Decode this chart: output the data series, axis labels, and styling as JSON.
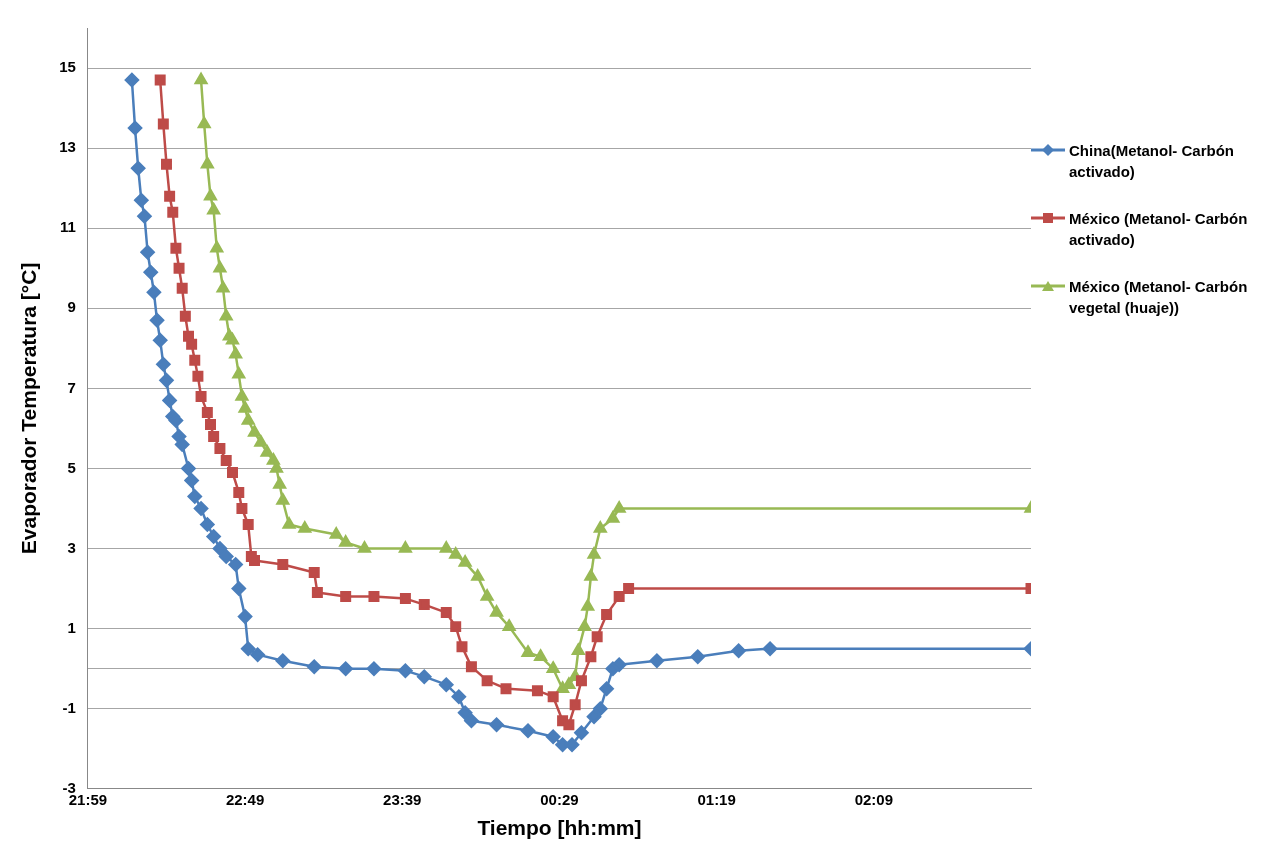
{
  "chart_data": {
    "type": "line",
    "xlabel": "Tiempo [hh:mm]",
    "ylabel": "Evaporador Temperatura [°C]",
    "xlim": [
      "--01-01T21:59",
      "--01-02T02:59"
    ],
    "xticks": [
      {
        "value": "--01-01T21:59",
        "label": "21:59"
      },
      {
        "value": "--01-01T22:49",
        "label": "22:49"
      },
      {
        "value": "--01-01T23:39",
        "label": "23:39"
      },
      {
        "value": "--01-02T00:29",
        "label": "00:29"
      },
      {
        "value": "--01-02T01:19",
        "label": "01:19"
      },
      {
        "value": "--01-02T02:09",
        "label": "02:09"
      }
    ],
    "ylim": [
      -3,
      16
    ],
    "yticks": [
      -3,
      -1,
      {
        "value": 0,
        "label": null
      },
      1,
      3,
      5,
      7,
      9,
      11,
      13,
      15
    ],
    "grid": "y",
    "legend": "right",
    "line_style": "solid",
    "series": [
      {
        "name": "China(Metanol- Carbón activado)",
        "color": "#4a7ebb",
        "marker": "diamond",
        "x": [
          "--01-01T22:13",
          "--01-01T22:14",
          "--01-01T22:15",
          "--01-01T22:16",
          "--01-01T22:17",
          "--01-01T22:18",
          "--01-01T22:19",
          "--01-01T22:20",
          "--01-01T22:21",
          "--01-01T22:22",
          "--01-01T22:23",
          "--01-01T22:24",
          "--01-01T22:25",
          "--01-01T22:26",
          "--01-01T22:27",
          "--01-01T22:28",
          "--01-01T22:29",
          "--01-01T22:31",
          "--01-01T22:32",
          "--01-01T22:33",
          "--01-01T22:35",
          "--01-01T22:37",
          "--01-01T22:39",
          "--01-01T22:41",
          "--01-01T22:43",
          "--01-01T22:46",
          "--01-01T22:47",
          "--01-01T22:49",
          "--01-01T22:50",
          "--01-01T22:53",
          "--01-01T23:01",
          "--01-01T23:11",
          "--01-01T23:21",
          "--01-01T23:30",
          "--01-01T23:40",
          "--01-01T23:46",
          "--01-01T23:53",
          "--01-01T23:57",
          "--01-01T23:59",
          "--01-02T00:01",
          "--01-02T00:09",
          "--01-02T00:19",
          "--01-02T00:27",
          "--01-02T00:30",
          "--01-02T00:33",
          "--01-02T00:36",
          "--01-02T00:40",
          "--01-02T00:42",
          "--01-02T00:44",
          "--01-02T00:46",
          "--01-02T00:48",
          "--01-02T01:00",
          "--01-02T01:13",
          "--01-02T01:26",
          "--01-02T01:36",
          "--01-02T02:59"
        ],
        "values": [
          14.7,
          13.5,
          12.5,
          11.7,
          11.3,
          10.4,
          9.9,
          9.4,
          8.7,
          8.2,
          7.6,
          7.2,
          6.7,
          6.3,
          6.2,
          5.8,
          5.6,
          5.0,
          4.7,
          4.3,
          4.0,
          3.6,
          3.3,
          3.0,
          2.8,
          2.6,
          2.0,
          1.3,
          0.5,
          0.35,
          0.2,
          0.05,
          0.0,
          0.0,
          -0.05,
          -0.2,
          -0.4,
          -0.7,
          -1.1,
          -1.3,
          -1.4,
          -1.55,
          -1.7,
          -1.9,
          -1.9,
          -1.6,
          -1.2,
          -1.0,
          -0.5,
          0.0,
          0.1,
          0.2,
          0.3,
          0.45,
          0.5,
          0.5
        ]
      },
      {
        "name": "México (Metanol- Carbón activado)",
        "color": "#be4b48",
        "marker": "square",
        "x": [
          "--01-01T22:22",
          "--01-01T22:23",
          "--01-01T22:24",
          "--01-01T22:25",
          "--01-01T22:26",
          "--01-01T22:27",
          "--01-01T22:28",
          "--01-01T22:29",
          "--01-01T22:30",
          "--01-01T22:31",
          "--01-01T22:32",
          "--01-01T22:33",
          "--01-01T22:34",
          "--01-01T22:35",
          "--01-01T22:37",
          "--01-01T22:38",
          "--01-01T22:39",
          "--01-01T22:41",
          "--01-01T22:43",
          "--01-01T22:45",
          "--01-01T22:47",
          "--01-01T22:48",
          "--01-01T22:50",
          "--01-01T22:51",
          "--01-01T22:52",
          "--01-01T23:01",
          "--01-01T23:11",
          "--01-01T23:12",
          "--01-01T23:21",
          "--01-01T23:30",
          "--01-01T23:40",
          "--01-01T23:46",
          "--01-01T23:53",
          "--01-01T23:56",
          "--01-01T23:58",
          "--01-02T00:01",
          "--01-02T00:06",
          "--01-02T00:12",
          "--01-02T00:22",
          "--01-02T00:27",
          "--01-02T00:30",
          "--01-02T00:32",
          "--01-02T00:34",
          "--01-02T00:36",
          "--01-02T00:39",
          "--01-02T00:41",
          "--01-02T00:44",
          "--01-02T00:48",
          "--01-02T00:51",
          "--01-02T02:59"
        ],
        "values": [
          14.7,
          13.6,
          12.6,
          11.8,
          11.4,
          10.5,
          10.0,
          9.5,
          8.8,
          8.3,
          8.1,
          7.7,
          7.3,
          6.8,
          6.4,
          6.1,
          5.8,
          5.5,
          5.2,
          4.9,
          4.4,
          4.0,
          3.6,
          2.8,
          2.7,
          2.6,
          2.4,
          1.9,
          1.8,
          1.8,
          1.75,
          1.6,
          1.4,
          1.05,
          0.55,
          0.05,
          -0.3,
          -0.5,
          -0.55,
          -0.7,
          -1.3,
          -1.4,
          -0.9,
          -0.3,
          0.3,
          0.8,
          1.35,
          1.8,
          2.0,
          2.0
        ]
      },
      {
        "name": "México (Metanol- Carbón vegetal (huaje))",
        "color": "#98b954",
        "marker": "triangle",
        "x": [
          "--01-01T22:35",
          "--01-01T22:36",
          "--01-01T22:37",
          "--01-01T22:38",
          "--01-01T22:39",
          "--01-01T22:40",
          "--01-01T22:41",
          "--01-01T22:42",
          "--01-01T22:43",
          "--01-01T22:44",
          "--01-01T22:45",
          "--01-01T22:46",
          "--01-01T22:47",
          "--01-01T22:48",
          "--01-01T22:49",
          "--01-01T22:50",
          "--01-01T22:52",
          "--01-01T22:54",
          "--01-01T22:56",
          "--01-01T22:58",
          "--01-01T22:59",
          "--01-01T23:00",
          "--01-01T23:01",
          "--01-01T23:03",
          "--01-01T23:08",
          "--01-01T23:18",
          "--01-01T23:21",
          "--01-01T23:27",
          "--01-01T23:40",
          "--01-01T23:53",
          "--01-01T23:56",
          "--01-01T23:59",
          "--01-02T00:03",
          "--01-02T00:06",
          "--01-02T00:09",
          "--01-02T00:13",
          "--01-02T00:19",
          "--01-02T00:23",
          "--01-02T00:27",
          "--01-02T00:30",
          "--01-02T00:32",
          "--01-02T00:34",
          "--01-02T00:35",
          "--01-02T00:37",
          "--01-02T00:38",
          "--01-02T00:39",
          "--01-02T00:40",
          "--01-02T00:42",
          "--01-02T00:46",
          "--01-02T00:48",
          "--01-02T02:59"
        ],
        "values": [
          14.7,
          13.6,
          12.6,
          11.8,
          11.45,
          10.5,
          10.0,
          9.5,
          8.8,
          8.3,
          8.2,
          7.85,
          7.35,
          6.8,
          6.5,
          6.2,
          5.9,
          5.65,
          5.4,
          5.2,
          5.0,
          4.6,
          4.2,
          3.6,
          3.5,
          3.35,
          3.15,
          3.0,
          3.0,
          3.0,
          2.85,
          2.65,
          2.3,
          1.8,
          1.4,
          1.05,
          0.4,
          0.3,
          0.0,
          -0.5,
          -0.4,
          -0.2,
          0.45,
          1.05,
          1.55,
          2.3,
          2.85,
          3.5,
          3.75,
          4.0,
          4.0
        ]
      }
    ]
  }
}
